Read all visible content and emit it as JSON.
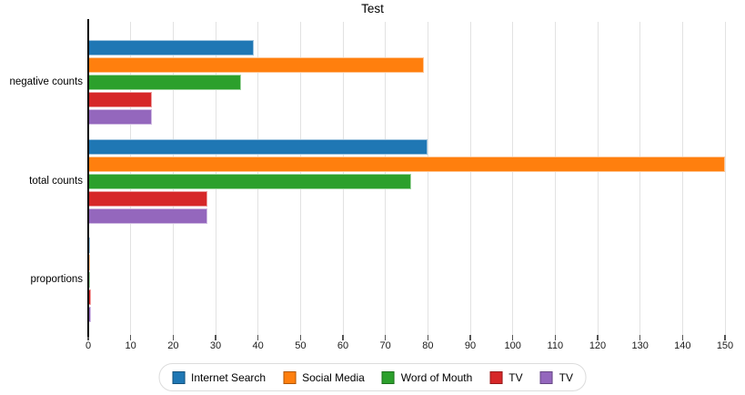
{
  "title": "Test",
  "chart_data": {
    "type": "bar",
    "orientation": "horizontal",
    "title": "Test",
    "xlabel": "",
    "ylabel": "",
    "categories": [
      "negative counts",
      "total counts",
      "proportions"
    ],
    "series": [
      {
        "name": "Internet Search",
        "color": "#1f77b4",
        "edge": "#14537e",
        "values": [
          39,
          80,
          0.49
        ]
      },
      {
        "name": "Social Media",
        "color": "#ff7f0e",
        "edge": "#b25706",
        "values": [
          79,
          150,
          0.53
        ]
      },
      {
        "name": "Word of Mouth",
        "color": "#2ca02c",
        "edge": "#1d701d",
        "values": [
          36,
          76,
          0.47
        ]
      },
      {
        "name": "TV",
        "color": "#d62728",
        "edge": "#951b1c",
        "values": [
          15,
          28,
          0.54
        ]
      },
      {
        "name": "TV",
        "color": "#9467bd",
        "edge": "#674884",
        "values": [
          15,
          28,
          0.54
        ]
      }
    ],
    "x_ticks": [
      0,
      10,
      20,
      30,
      40,
      50,
      60,
      70,
      80,
      90,
      100,
      110,
      120,
      130,
      140,
      150
    ],
    "xlim": [
      0,
      152.6
    ],
    "grid": "vertical",
    "gridline_color": "#e2e2e2",
    "axis_color": "#000000",
    "legend_position": "bottom"
  }
}
